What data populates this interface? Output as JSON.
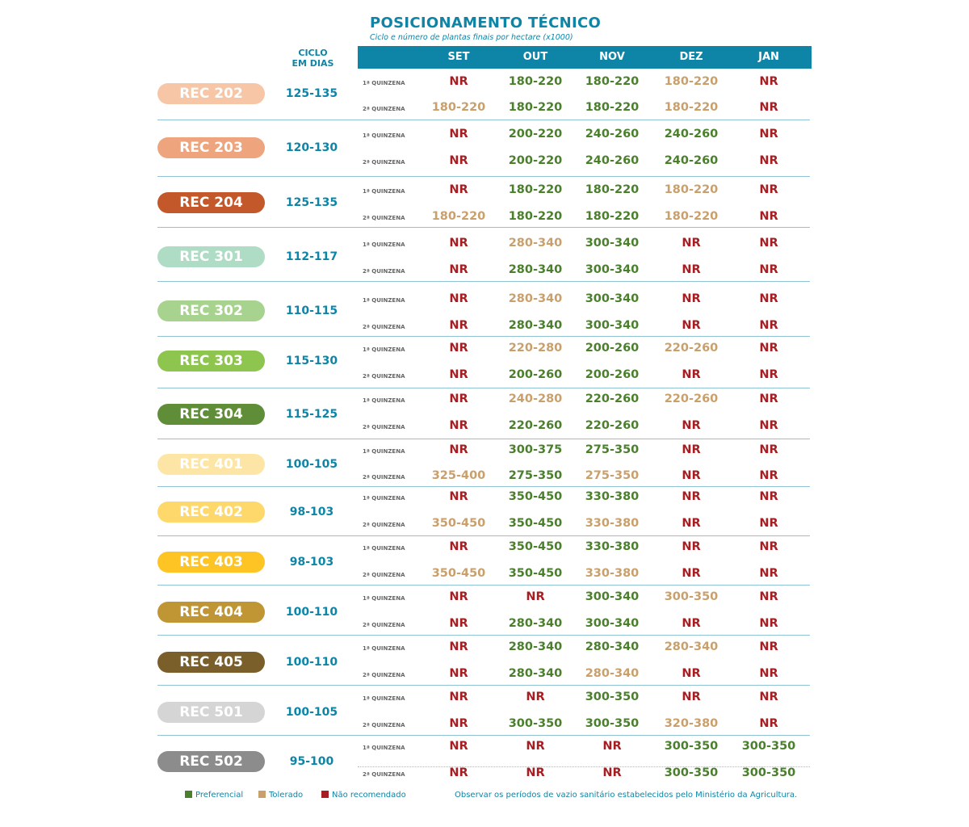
{
  "title": "POSICIONAMENTO TÉCNICO",
  "subtitle": "Ciclo e número de plantas finais por hectare (x1000)",
  "ciclo_header": [
    "CICLO",
    "EM DIAS"
  ],
  "months": [
    "SET",
    "OUT",
    "NOV",
    "DEZ",
    "JAN"
  ],
  "quinzenas": [
    "1ª QUINZENA",
    "2ª QUINZENA"
  ],
  "colors": {
    "P": "#4a7f2c",
    "T": "#c9a06c",
    "N": "#a61e22",
    "header": "#0e85a6"
  },
  "rows": [
    {
      "name": "REC 202",
      "color": "#f6c6a6",
      "cycle": "125-135",
      "q1": [
        [
          "NR",
          "N"
        ],
        [
          "180-220",
          "P"
        ],
        [
          "180-220",
          "P"
        ],
        [
          "180-220",
          "T"
        ],
        [
          "NR",
          "N"
        ]
      ],
      "q2": [
        [
          "180-220",
          "T"
        ],
        [
          "180-220",
          "P"
        ],
        [
          "180-220",
          "P"
        ],
        [
          "180-220",
          "T"
        ],
        [
          "NR",
          "N"
        ]
      ]
    },
    {
      "name": "REC 203",
      "color": "#eea57d",
      "cycle": "120-130",
      "q1": [
        [
          "NR",
          "N"
        ],
        [
          "200-220",
          "P"
        ],
        [
          "240-260",
          "P"
        ],
        [
          "240-260",
          "P"
        ],
        [
          "NR",
          "N"
        ]
      ],
      "q2": [
        [
          "NR",
          "N"
        ],
        [
          "200-220",
          "P"
        ],
        [
          "240-260",
          "P"
        ],
        [
          "240-260",
          "P"
        ],
        [
          "NR",
          "N"
        ]
      ]
    },
    {
      "name": "REC 204",
      "color": "#c3582b",
      "cycle": "125-135",
      "q1": [
        [
          "NR",
          "N"
        ],
        [
          "180-220",
          "P"
        ],
        [
          "180-220",
          "P"
        ],
        [
          "180-220",
          "T"
        ],
        [
          "NR",
          "N"
        ]
      ],
      "q2": [
        [
          "180-220",
          "T"
        ],
        [
          "180-220",
          "P"
        ],
        [
          "180-220",
          "P"
        ],
        [
          "180-220",
          "T"
        ],
        [
          "NR",
          "N"
        ]
      ]
    },
    {
      "name": "REC 301",
      "color": "#afdcc4",
      "cycle": "112-117",
      "q1": [
        [
          "NR",
          "N"
        ],
        [
          "280-340",
          "T"
        ],
        [
          "300-340",
          "P"
        ],
        [
          "NR",
          "N"
        ],
        [
          "NR",
          "N"
        ]
      ],
      "q2": [
        [
          "NR",
          "N"
        ],
        [
          "280-340",
          "P"
        ],
        [
          "300-340",
          "P"
        ],
        [
          "NR",
          "N"
        ],
        [
          "NR",
          "N"
        ]
      ]
    },
    {
      "name": "REC 302",
      "color": "#a8d38f",
      "cycle": "110-115",
      "q1": [
        [
          "NR",
          "N"
        ],
        [
          "280-340",
          "T"
        ],
        [
          "300-340",
          "P"
        ],
        [
          "NR",
          "N"
        ],
        [
          "NR",
          "N"
        ]
      ],
      "q2": [
        [
          "NR",
          "N"
        ],
        [
          "280-340",
          "P"
        ],
        [
          "300-340",
          "P"
        ],
        [
          "NR",
          "N"
        ],
        [
          "NR",
          "N"
        ]
      ]
    },
    {
      "name": "REC 303",
      "color": "#8dc54f",
      "cycle": "115-130",
      "q1": [
        [
          "NR",
          "N"
        ],
        [
          "220-280",
          "T"
        ],
        [
          "200-260",
          "P"
        ],
        [
          "220-260",
          "T"
        ],
        [
          "NR",
          "N"
        ]
      ],
      "q2": [
        [
          "NR",
          "N"
        ],
        [
          "200-260",
          "P"
        ],
        [
          "200-260",
          "P"
        ],
        [
          "NR",
          "N"
        ],
        [
          "NR",
          "N"
        ]
      ]
    },
    {
      "name": "REC 304",
      "color": "#5f8d38",
      "cycle": "115-125",
      "q1": [
        [
          "NR",
          "N"
        ],
        [
          "240-280",
          "T"
        ],
        [
          "220-260",
          "P"
        ],
        [
          "220-260",
          "T"
        ],
        [
          "NR",
          "N"
        ]
      ],
      "q2": [
        [
          "NR",
          "N"
        ],
        [
          "220-260",
          "P"
        ],
        [
          "220-260",
          "P"
        ],
        [
          "NR",
          "N"
        ],
        [
          "NR",
          "N"
        ]
      ]
    },
    {
      "name": "REC 401",
      "color": "#fde6a5",
      "cycle": "100-105",
      "q1": [
        [
          "NR",
          "N"
        ],
        [
          "300-375",
          "P"
        ],
        [
          "275-350",
          "P"
        ],
        [
          "NR",
          "N"
        ],
        [
          "NR",
          "N"
        ]
      ],
      "q2": [
        [
          "325-400",
          "T"
        ],
        [
          "275-350",
          "P"
        ],
        [
          "275-350",
          "T"
        ],
        [
          "NR",
          "N"
        ],
        [
          "NR",
          "N"
        ]
      ]
    },
    {
      "name": "REC 402",
      "color": "#fed86a",
      "cycle": "98-103",
      "q1": [
        [
          "NR",
          "N"
        ],
        [
          "350-450",
          "P"
        ],
        [
          "330-380",
          "P"
        ],
        [
          "NR",
          "N"
        ],
        [
          "NR",
          "N"
        ]
      ],
      "q2": [
        [
          "350-450",
          "T"
        ],
        [
          "350-450",
          "P"
        ],
        [
          "330-380",
          "T"
        ],
        [
          "NR",
          "N"
        ],
        [
          "NR",
          "N"
        ]
      ]
    },
    {
      "name": "REC 403",
      "color": "#fec423",
      "cycle": "98-103",
      "q1": [
        [
          "NR",
          "N"
        ],
        [
          "350-450",
          "P"
        ],
        [
          "330-380",
          "P"
        ],
        [
          "NR",
          "N"
        ],
        [
          "NR",
          "N"
        ]
      ],
      "q2": [
        [
          "350-450",
          "T"
        ],
        [
          "350-450",
          "P"
        ],
        [
          "330-380",
          "T"
        ],
        [
          "NR",
          "N"
        ],
        [
          "NR",
          "N"
        ]
      ]
    },
    {
      "name": "REC 404",
      "color": "#c09634",
      "cycle": "100-110",
      "q1": [
        [
          "NR",
          "N"
        ],
        [
          "NR",
          "N"
        ],
        [
          "300-340",
          "P"
        ],
        [
          "300-350",
          "T"
        ],
        [
          "NR",
          "N"
        ]
      ],
      "q2": [
        [
          "NR",
          "N"
        ],
        [
          "280-340",
          "P"
        ],
        [
          "300-340",
          "P"
        ],
        [
          "NR",
          "N"
        ],
        [
          "NR",
          "N"
        ]
      ]
    },
    {
      "name": "REC 405",
      "color": "#7a5f2a",
      "cycle": "100-110",
      "q1": [
        [
          "NR",
          "N"
        ],
        [
          "280-340",
          "P"
        ],
        [
          "280-340",
          "P"
        ],
        [
          "280-340",
          "T"
        ],
        [
          "NR",
          "N"
        ]
      ],
      "q2": [
        [
          "NR",
          "N"
        ],
        [
          "280-340",
          "P"
        ],
        [
          "280-340",
          "T"
        ],
        [
          "NR",
          "N"
        ],
        [
          "NR",
          "N"
        ]
      ]
    },
    {
      "name": "REC 501",
      "color": "#d5d5d5",
      "cycle": "100-105",
      "q1": [
        [
          "NR",
          "N"
        ],
        [
          "NR",
          "N"
        ],
        [
          "300-350",
          "P"
        ],
        [
          "NR",
          "N"
        ],
        [
          "NR",
          "N"
        ]
      ],
      "q2": [
        [
          "NR",
          "N"
        ],
        [
          "300-350",
          "P"
        ],
        [
          "300-350",
          "P"
        ],
        [
          "320-380",
          "T"
        ],
        [
          "NR",
          "N"
        ]
      ]
    },
    {
      "name": "REC 502",
      "color": "#8c8c8c",
      "cycle": "95-100",
      "q1": [
        [
          "NR",
          "N"
        ],
        [
          "NR",
          "N"
        ],
        [
          "NR",
          "N"
        ],
        [
          "300-350",
          "P"
        ],
        [
          "300-350",
          "P"
        ]
      ],
      "q2": [
        [
          "NR",
          "N"
        ],
        [
          "NR",
          "N"
        ],
        [
          "NR",
          "N"
        ],
        [
          "300-350",
          "P"
        ],
        [
          "300-350",
          "P"
        ]
      ]
    }
  ],
  "legend": [
    {
      "label": "Preferencial",
      "color": "#4a7f2c"
    },
    {
      "label": "Tolerado",
      "color": "#c9a06c"
    },
    {
      "label": "Não recomendado",
      "color": "#a61e22"
    }
  ],
  "note": "Observar os períodos de vazio sanitário estabelecidos pelo Ministério da Agricultura."
}
